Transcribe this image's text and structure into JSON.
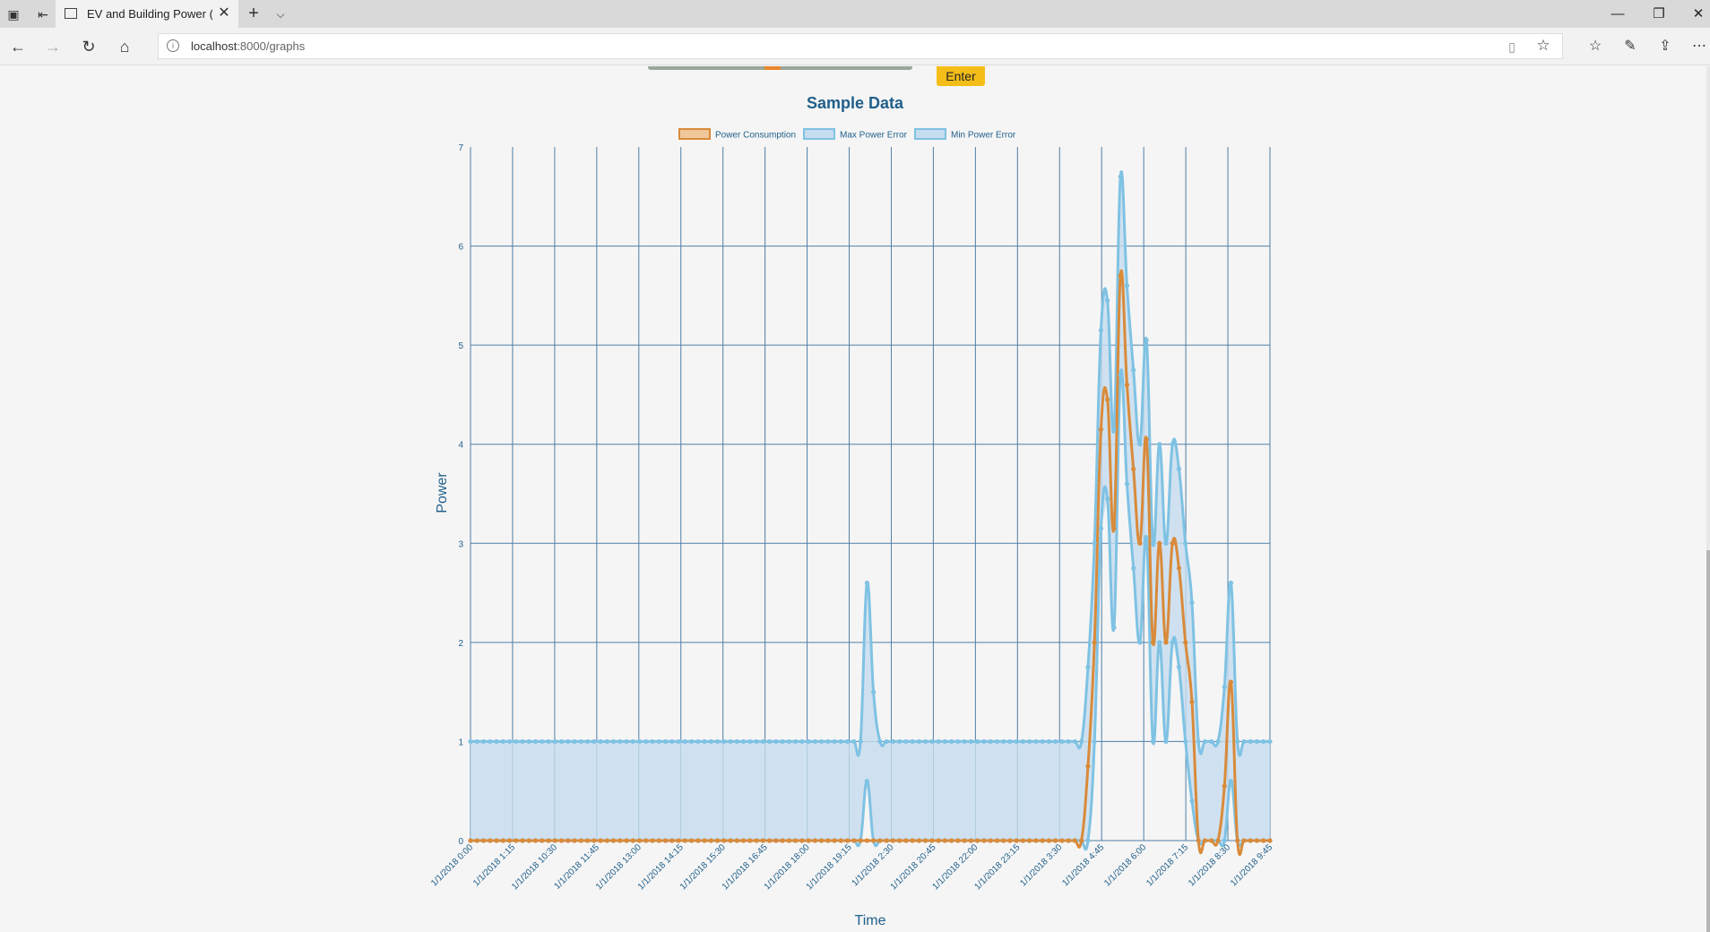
{
  "browser": {
    "tab_title": "EV and Building Power (",
    "url_host": "localhost",
    "url_rest": ":8000/graphs"
  },
  "page": {
    "enter_label": "Enter",
    "slider_value": 0.47
  },
  "chart_data": {
    "type": "line",
    "title": "Sample Data",
    "xlabel": "Time",
    "ylabel": "Power",
    "ylim": [
      0,
      7
    ],
    "yticks": [
      0,
      1,
      2,
      3,
      4,
      5,
      6,
      7
    ],
    "grid": true,
    "legend_position": "top",
    "x_ticks": [
      "1/1/2018 0:00",
      "1/1/2018 1:15",
      "1/1/2018 10:30",
      "1/1/2018 11:45",
      "1/1/2018 13:00",
      "1/1/2018 14:15",
      "1/1/2018 15:30",
      "1/1/2018 16:45",
      "1/1/2018 18:00",
      "1/1/2018 19:15",
      "1/1/2018 2:30",
      "1/1/2018 20:45",
      "1/1/2018 22:00",
      "1/1/2018 23:15",
      "1/1/2018 3:30",
      "1/1/2018 4:45",
      "1/1/2018 6:00",
      "1/1/2018 7:15",
      "1/1/2018 8:30",
      "1/1/2018 9:45"
    ],
    "series": [
      {
        "name": "Power Consumption",
        "color": "#d98a3a",
        "fill": "#f0c79b",
        "values": [
          0,
          0,
          0,
          0,
          0,
          0,
          0,
          0,
          0,
          0,
          0,
          0,
          0,
          0,
          0,
          0,
          0,
          0,
          0,
          0,
          0,
          0,
          0,
          0,
          0,
          0,
          0,
          0,
          0,
          0,
          0,
          0,
          0,
          0,
          0,
          0,
          0,
          0,
          0,
          0,
          0,
          0,
          0,
          0,
          0,
          0,
          0,
          0,
          0,
          0,
          0,
          0,
          0,
          0,
          0,
          0,
          0,
          0,
          0,
          0,
          0,
          0,
          0,
          0,
          0,
          0,
          0,
          0,
          0,
          0,
          0,
          0,
          0,
          0,
          0,
          0,
          0,
          0,
          0,
          0,
          0,
          0,
          0,
          0,
          0,
          0,
          0,
          0,
          0,
          0,
          0,
          0,
          0,
          0,
          0,
          0.75,
          2.0,
          4.15,
          4.45,
          3.15,
          5.7,
          4.6,
          3.75,
          3.0,
          4.05,
          2.0,
          3.0,
          2.0,
          3.0,
          2.75,
          2.0,
          1.4,
          0,
          0,
          0,
          0,
          0.55,
          1.6,
          0,
          0,
          0,
          0,
          0,
          0
        ]
      },
      {
        "name": "Max Power Error",
        "color": "#7fc2e3",
        "fill": "#c6dcef",
        "values": [
          1,
          1,
          1,
          1,
          1,
          1,
          1,
          1,
          1,
          1,
          1,
          1,
          1,
          1,
          1,
          1,
          1,
          1,
          1,
          1,
          1,
          1,
          1,
          1,
          1,
          1,
          1,
          1,
          1,
          1,
          1,
          1,
          1,
          1,
          1,
          1,
          1,
          1,
          1,
          1,
          1,
          1,
          1,
          1,
          1,
          1,
          1,
          1,
          1,
          1,
          1,
          1,
          1,
          1,
          1,
          1,
          1,
          1,
          1,
          1,
          1,
          2.6,
          1.5,
          1,
          1,
          1,
          1,
          1,
          1,
          1,
          1,
          1,
          1,
          1,
          1,
          1,
          1,
          1,
          1,
          1,
          1,
          1,
          1,
          1,
          1,
          1,
          1,
          1,
          1,
          1,
          1,
          1,
          1,
          1,
          1,
          1.75,
          3.0,
          5.15,
          5.45,
          4.15,
          6.7,
          5.6,
          4.75,
          4.0,
          5.05,
          3.0,
          4.0,
          3.0,
          4.0,
          3.75,
          3.0,
          2.4,
          1,
          1,
          1,
          1,
          1.55,
          2.6,
          1,
          1,
          1,
          1,
          1,
          1
        ]
      },
      {
        "name": "Min Power Error",
        "color": "#7fc2e3",
        "fill": "#c6dcef",
        "values": [
          0,
          0,
          0,
          0,
          0,
          0,
          0,
          0,
          0,
          0,
          0,
          0,
          0,
          0,
          0,
          0,
          0,
          0,
          0,
          0,
          0,
          0,
          0,
          0,
          0,
          0,
          0,
          0,
          0,
          0,
          0,
          0,
          0,
          0,
          0,
          0,
          0,
          0,
          0,
          0,
          0,
          0,
          0,
          0,
          0,
          0,
          0,
          0,
          0,
          0,
          0,
          0,
          0,
          0,
          0,
          0,
          0,
          0,
          0,
          0,
          0,
          0.6,
          0,
          0,
          0,
          0,
          0,
          0,
          0,
          0,
          0,
          0,
          0,
          0,
          0,
          0,
          0,
          0,
          0,
          0,
          0,
          0,
          0,
          0,
          0,
          0,
          0,
          0,
          0,
          0,
          0,
          0,
          0,
          0,
          0,
          0,
          1.0,
          3.15,
          3.45,
          2.15,
          4.7,
          3.6,
          2.75,
          2.0,
          3.05,
          1.0,
          2.0,
          1.0,
          2.0,
          1.75,
          1.0,
          0.4,
          0,
          0,
          0,
          0,
          0,
          0.6,
          0,
          0,
          0,
          0,
          0,
          0
        ]
      }
    ]
  }
}
